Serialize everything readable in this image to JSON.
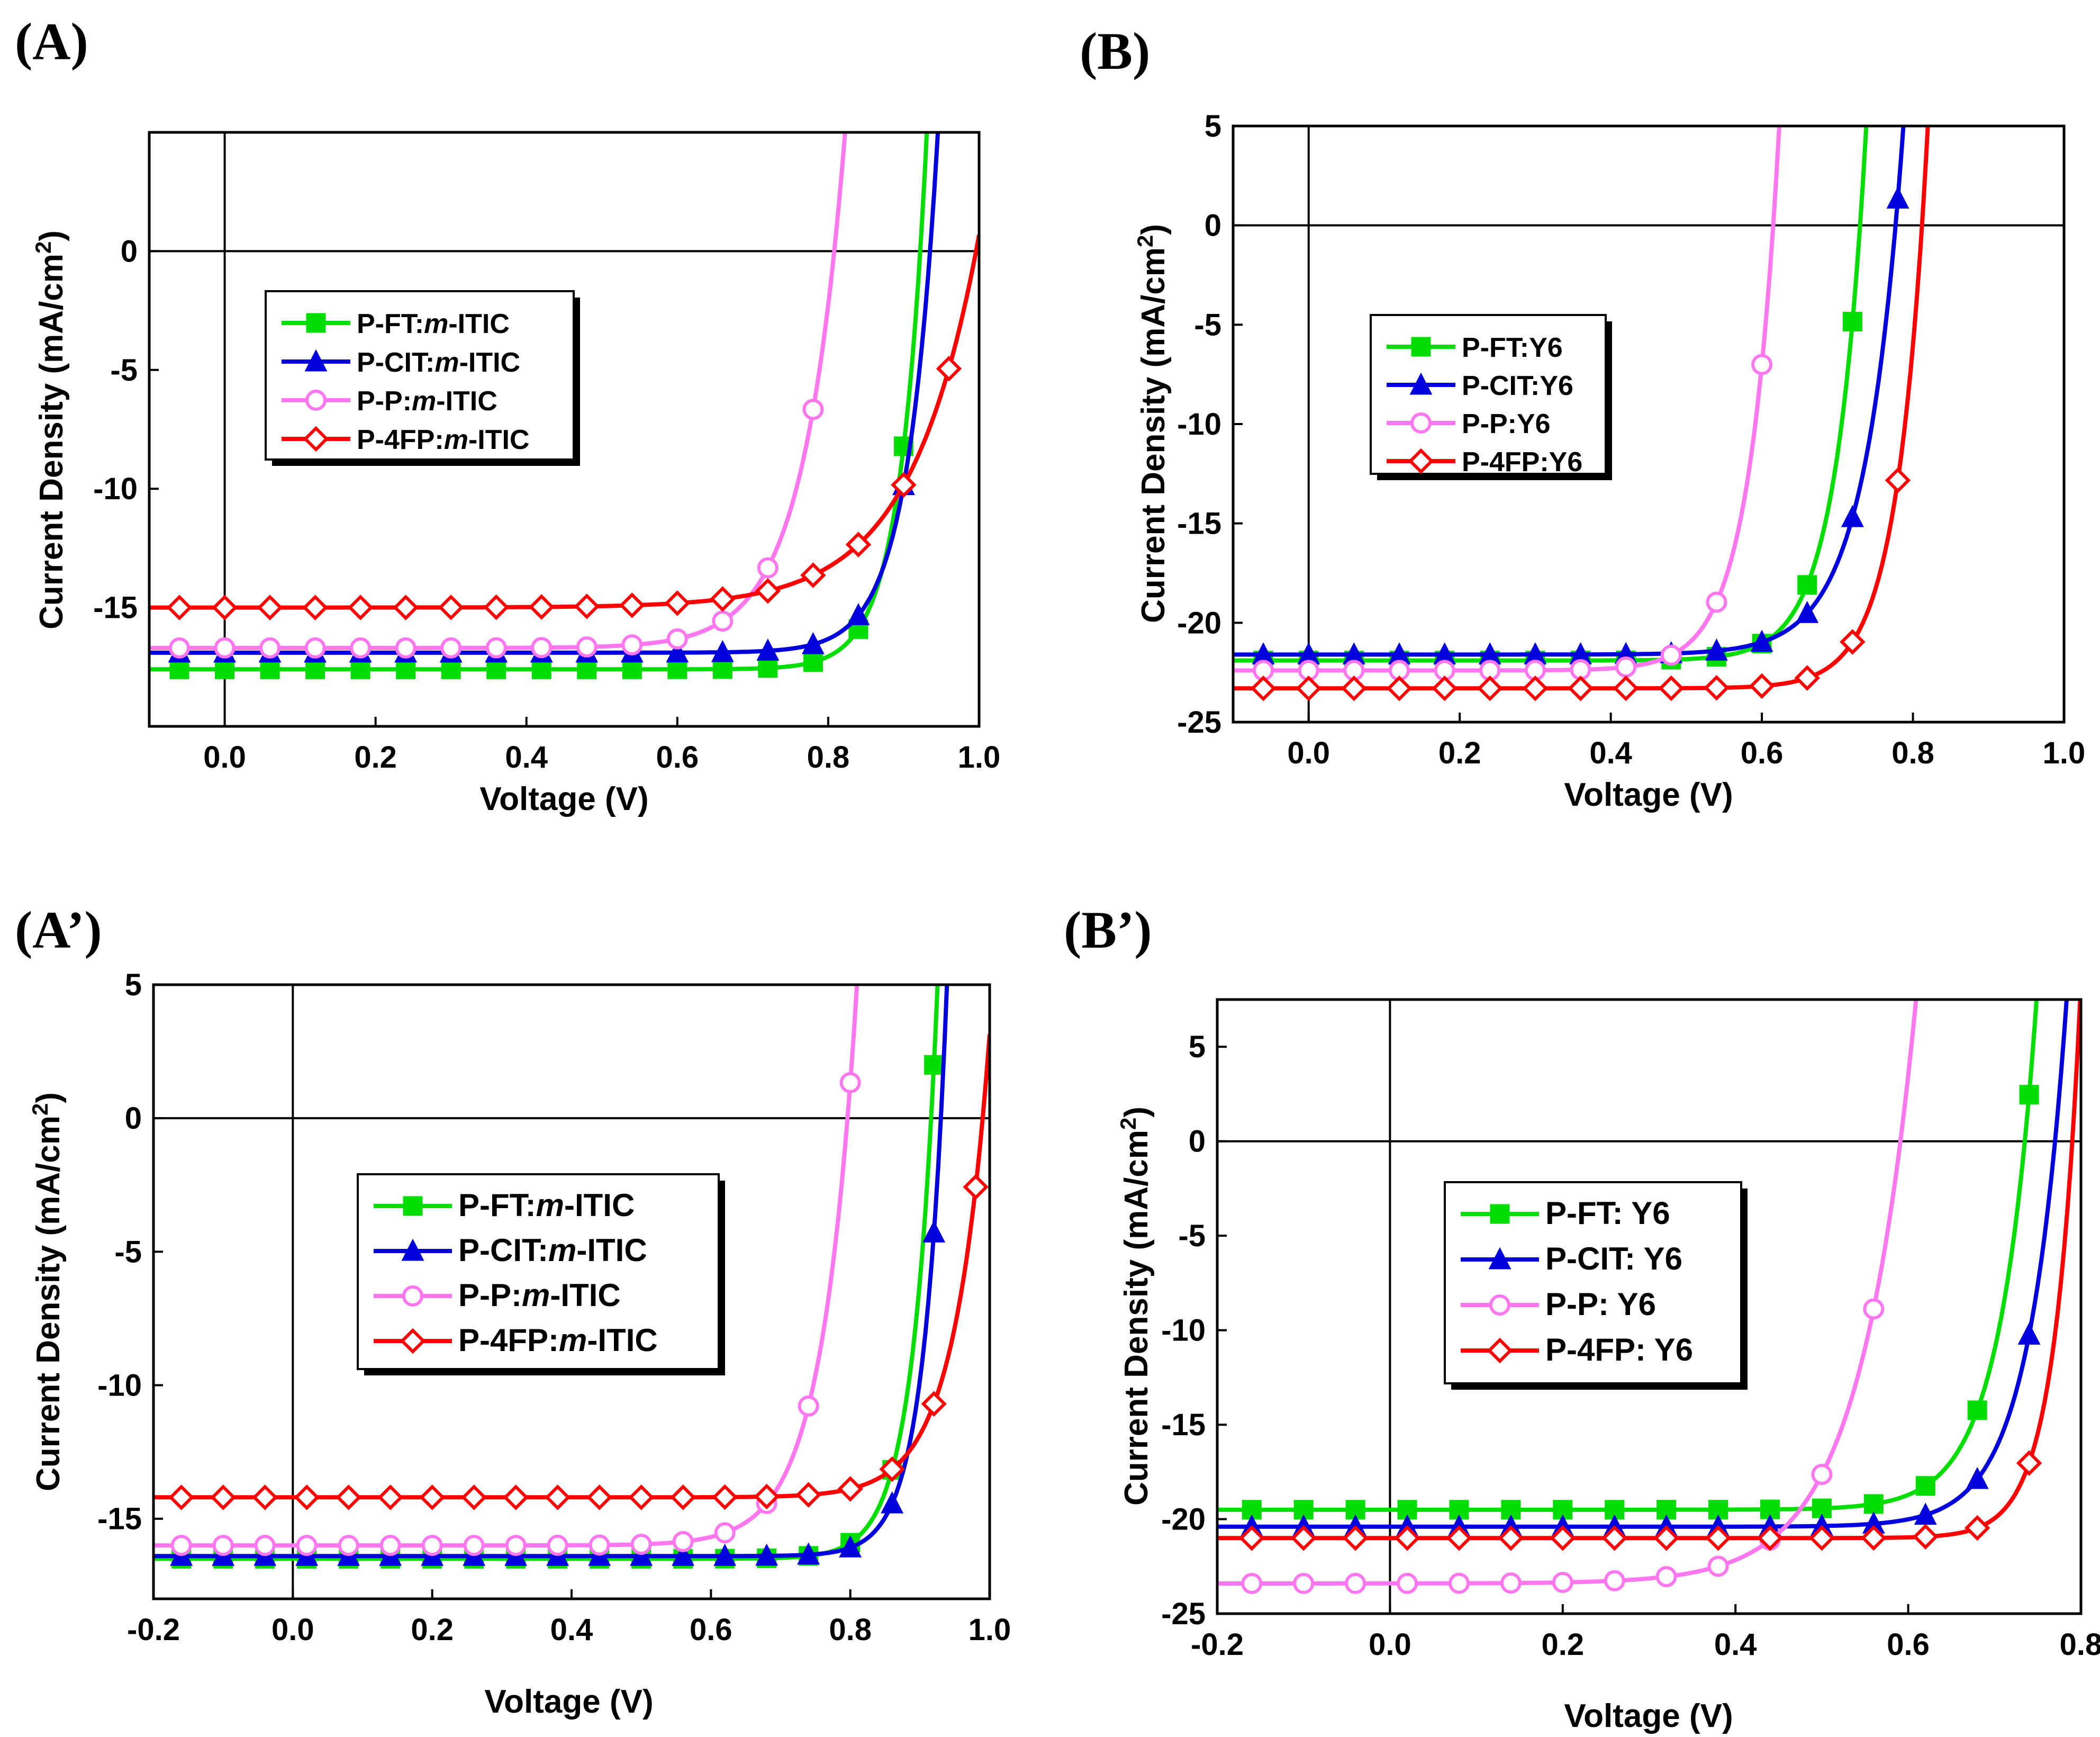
{
  "chart_data": [
    {
      "panel": "(A)",
      "type": "line",
      "xlabel": "Voltage (V)",
      "ylabel": "Current Density (mA/cm2)",
      "xlim": [
        -0.1,
        1.0
      ],
      "ylim": [
        -20,
        5
      ],
      "xticks": [
        "0.0",
        "0.2",
        "0.4",
        "0.6",
        "0.8",
        "1.0"
      ],
      "xtick_values": [
        0.0,
        0.2,
        0.4,
        0.6,
        0.8,
        1.0
      ],
      "yticks": [
        "0",
        "-5",
        "-10",
        "-15"
      ],
      "ytick_values": [
        0,
        -5,
        -10,
        -15
      ],
      "legend_position": "upper-left",
      "series": [
        {
          "name": "P-FT:",
          "italic": "m",
          "suffix": "-ITIC",
          "color": "#00dd00",
          "marker": "square",
          "jsc": -17.6,
          "voc": 0.922,
          "n": 0.035
        },
        {
          "name": "P-CIT:",
          "italic": "m",
          "suffix": "-ITIC",
          "color": "#0000dd",
          "marker": "triangle",
          "jsc": -16.9,
          "voc": 0.935,
          "n": 0.04
        },
        {
          "name": "P-P:",
          "italic": "m",
          "suffix": "-ITIC",
          "color": "#ff77ee",
          "marker": "circle",
          "jsc": -16.7,
          "voc": 0.808,
          "n": 0.055
        },
        {
          "name": "P-4FP:",
          "italic": "m",
          "suffix": "-ITIC",
          "color": "#ff0000",
          "marker": "diamond",
          "jsc": -15.0,
          "voc": 0.996,
          "n": 0.09
        }
      ]
    },
    {
      "panel": "(B)",
      "type": "line",
      "xlabel": "Voltage (V)",
      "ylabel": "Current Density (mA/cm2)",
      "xlim": [
        -0.1,
        1.0
      ],
      "ylim": [
        -25,
        5
      ],
      "xticks": [
        "0.0",
        "0.2",
        "0.4",
        "0.6",
        "0.8",
        "1.0"
      ],
      "xtick_values": [
        0.0,
        0.2,
        0.4,
        0.6,
        0.8,
        1.0
      ],
      "yticks": [
        "5",
        "0",
        "-5",
        "-10",
        "-15",
        "-20",
        "-25"
      ],
      "ytick_values": [
        5,
        0,
        -5,
        -10,
        -15,
        -20,
        -25
      ],
      "legend_position": "upper-left",
      "series": [
        {
          "name": "P-FT:Y6",
          "italic": "",
          "suffix": "",
          "color": "#00dd00",
          "marker": "square",
          "jsc": -21.9,
          "voc": 0.73,
          "n": 0.04
        },
        {
          "name": "P-CIT:Y6",
          "italic": "",
          "suffix": "",
          "color": "#0000dd",
          "marker": "triangle",
          "jsc": -21.6,
          "voc": 0.777,
          "n": 0.05
        },
        {
          "name": "P-P:Y6",
          "italic": "",
          "suffix": "",
          "color": "#ff77ee",
          "marker": "circle",
          "jsc": -22.4,
          "voc": 0.615,
          "n": 0.04
        },
        {
          "name": "P-4FP:Y6",
          "italic": "",
          "suffix": "",
          "color": "#ff0000",
          "marker": "diamond",
          "jsc": -23.3,
          "voc": 0.812,
          "n": 0.04
        }
      ]
    },
    {
      "panel": "(A’)",
      "type": "line",
      "xlabel": "Voltage (V)",
      "ylabel": "Current Density (mA/cm2)",
      "xlim": [
        -0.2,
        1.0
      ],
      "ylim": [
        -18,
        5
      ],
      "xticks": [
        "-0.2",
        "0.0",
        "0.2",
        "0.4",
        "0.6",
        "0.8",
        "1.0"
      ],
      "xtick_values": [
        -0.2,
        0.0,
        0.2,
        0.4,
        0.6,
        0.8,
        1.0
      ],
      "yticks": [
        "5",
        "0",
        "-5",
        "-10",
        "-15"
      ],
      "ytick_values": [
        5,
        0,
        -5,
        -10,
        -15
      ],
      "legend_position": "center",
      "series": [
        {
          "name": "P-FT:",
          "italic": "m",
          "suffix": "-ITIC",
          "color": "#00dd00",
          "marker": "square",
          "jsc": -16.5,
          "voc": 0.916,
          "n": 0.035
        },
        {
          "name": "P-CIT:",
          "italic": "m",
          "suffix": "-ITIC",
          "color": "#0000dd",
          "marker": "triangle",
          "jsc": -16.4,
          "voc": 0.93,
          "n": 0.033
        },
        {
          "name": "P-P:",
          "italic": "m",
          "suffix": "-ITIC",
          "color": "#ff77ee",
          "marker": "circle",
          "jsc": -16.0,
          "voc": 0.796,
          "n": 0.05
        },
        {
          "name": "P-4FP:",
          "italic": "m",
          "suffix": "-ITIC",
          "color": "#ff0000",
          "marker": "diamond",
          "jsc": -14.2,
          "voc": 0.99,
          "n": 0.05
        }
      ]
    },
    {
      "panel": "(B’)",
      "type": "line",
      "xlabel": "Voltage (V)",
      "ylabel": "Current Density (mA/cm2)",
      "xlim": [
        -0.2,
        0.8
      ],
      "ylim": [
        -25,
        7.5
      ],
      "xticks": [
        "-0.2",
        "0.0",
        "0.2",
        "0.4",
        "0.6",
        "0.8"
      ],
      "xtick_values": [
        -0.2,
        0.0,
        0.2,
        0.4,
        0.6,
        0.8
      ],
      "yticks": [
        "5",
        "0",
        "-5",
        "-10",
        "-15",
        "-20",
        "-25"
      ],
      "ytick_values": [
        5,
        0,
        -5,
        -10,
        -15,
        -20,
        -25
      ],
      "legend_position": "center-left",
      "series": [
        {
          "name": "P-FT: Y6",
          "italic": "",
          "suffix": "",
          "color": "#00dd00",
          "marker": "square",
          "jsc": -19.5,
          "voc": 0.735,
          "n": 0.042
        },
        {
          "name": "P-CIT: Y6",
          "italic": "",
          "suffix": "",
          "color": "#0000dd",
          "marker": "triangle",
          "jsc": -20.4,
          "voc": 0.77,
          "n": 0.043
        },
        {
          "name": "P-P: Y6",
          "italic": "",
          "suffix": "",
          "color": "#ff77ee",
          "marker": "circle",
          "jsc": -23.4,
          "voc": 0.591,
          "n": 0.065
        },
        {
          "name": "P-4FP: Y6",
          "italic": "",
          "suffix": "",
          "color": "#ff0000",
          "marker": "diamond",
          "jsc": -21.0,
          "voc": 0.79,
          "n": 0.03
        }
      ]
    }
  ]
}
